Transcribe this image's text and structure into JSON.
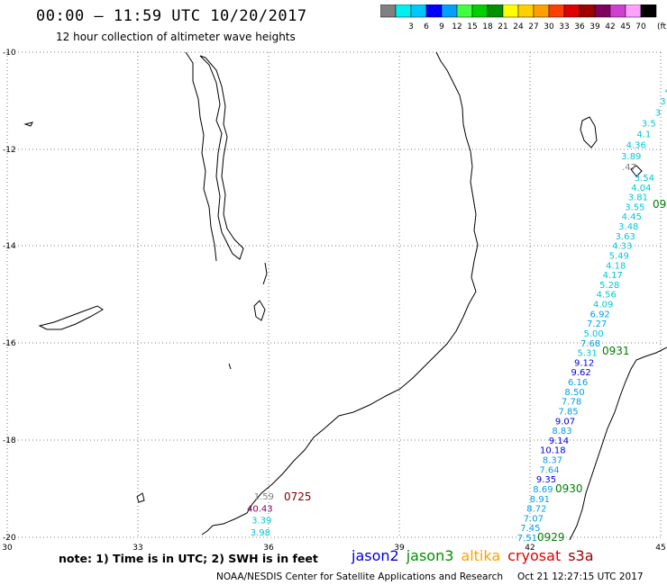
{
  "title": "00:00 – 11:59 UTC 10/20/2017",
  "subtitle": "12 hour collection of altimeter wave heights",
  "color_scale": {
    "unit": "(ft)",
    "bins": [
      {
        "label": "",
        "color": "#808080"
      },
      {
        "label": "3",
        "color": "#00f0f0"
      },
      {
        "label": "6",
        "color": "#00c8ff"
      },
      {
        "label": "9",
        "color": "#0000ff"
      },
      {
        "label": "12",
        "color": "#00a0ff"
      },
      {
        "label": "15",
        "color": "#40ff40"
      },
      {
        "label": "18",
        "color": "#00d000"
      },
      {
        "label": "21",
        "color": "#009000"
      },
      {
        "label": "24",
        "color": "#ffff00"
      },
      {
        "label": "27",
        "color": "#ffd000"
      },
      {
        "label": "30",
        "color": "#ffa000"
      },
      {
        "label": "33",
        "color": "#ff4000"
      },
      {
        "label": "36",
        "color": "#e00000"
      },
      {
        "label": "39",
        "color": "#a00000"
      },
      {
        "label": "42",
        "color": "#800060"
      },
      {
        "label": "45",
        "color": "#d040d0"
      },
      {
        "label": "70",
        "color": "#ffa0ff"
      },
      {
        "label": "",
        "color": "#000000"
      }
    ]
  },
  "axes": {
    "lon_ticks": [
      "30",
      "33",
      "36",
      "39",
      "42",
      "45"
    ],
    "lat_ticks": [
      "-10",
      "-12",
      "-14",
      "-16",
      "-18",
      "-20"
    ]
  },
  "passes": [
    {
      "label": "0725",
      "satellite": "cryosat",
      "color": "#800000"
    },
    {
      "label": "0931",
      "satellite": "jason3",
      "color": "#008000"
    },
    {
      "label": "0930",
      "satellite": "jason3",
      "color": "#008000"
    },
    {
      "label": "0929",
      "satellite": "jason3",
      "color": "#008000"
    },
    {
      "label": "09",
      "satellite": "jason3",
      "color": "#008000"
    }
  ],
  "wave_track_main": [
    {
      "v": "3.54",
      "c": "#00c8d8"
    },
    {
      "v": "4.04",
      "c": "#00c8d8"
    },
    {
      "v": "3.81",
      "c": "#00c8d8"
    },
    {
      "v": "3.55",
      "c": "#00c8d8"
    },
    {
      "v": "4.45",
      "c": "#00c8d8"
    },
    {
      "v": "3.48",
      "c": "#00c8d8"
    },
    {
      "v": "3.63",
      "c": "#00c8d8"
    },
    {
      "v": "4.33",
      "c": "#00c8d8"
    },
    {
      "v": "5.49",
      "c": "#00c8d8"
    },
    {
      "v": "4.18",
      "c": "#00c8d8"
    },
    {
      "v": "4.17",
      "c": "#00c8d8"
    },
    {
      "v": "5.28",
      "c": "#00c8d8"
    },
    {
      "v": "4.56",
      "c": "#00c8d8"
    },
    {
      "v": "4.09",
      "c": "#00c8d8"
    },
    {
      "v": "6.92",
      "c": "#00a0e8"
    },
    {
      "v": "7.27",
      "c": "#00a0e8"
    },
    {
      "v": "5.00",
      "c": "#00c8d8"
    },
    {
      "v": "7.68",
      "c": "#00a0e8"
    },
    {
      "v": "5.31",
      "c": "#00c8d8"
    },
    {
      "v": "9.12",
      "c": "#0000e0"
    },
    {
      "v": "9.62",
      "c": "#0000e0"
    },
    {
      "v": "6.16",
      "c": "#00a0e8"
    },
    {
      "v": "8.50",
      "c": "#00a0e8"
    },
    {
      "v": "7.78",
      "c": "#00a0e8"
    },
    {
      "v": "7.85",
      "c": "#00a0e8"
    },
    {
      "v": "9.07",
      "c": "#0000e0"
    },
    {
      "v": "8.83",
      "c": "#00a0e8"
    },
    {
      "v": "9.14",
      "c": "#0000e0"
    },
    {
      "v": "10.18",
      "c": "#0000e0"
    },
    {
      "v": "8.37",
      "c": "#00a0e8"
    },
    {
      "v": "7.64",
      "c": "#00a0e8"
    },
    {
      "v": "9.35",
      "c": "#0000e0"
    },
    {
      "v": "8.69",
      "c": "#00a0e8"
    },
    {
      "v": "8.91",
      "c": "#00a0e8"
    },
    {
      "v": "8.72",
      "c": "#00a0e8"
    },
    {
      "v": "7.07",
      "c": "#00a0e8"
    },
    {
      "v": "7.45",
      "c": "#00a0e8"
    },
    {
      "v": "7.51",
      "c": "#00a0e8"
    }
  ],
  "wave_track_top": [
    {
      "v": "4",
      "c": "#00c8d8"
    },
    {
      "v": "3",
      "c": "#00c8d8"
    },
    {
      "v": "3",
      "c": "#00c8d8"
    },
    {
      "v": "3.5",
      "c": "#00c8d8"
    },
    {
      "v": "4.1",
      "c": "#00c8d8"
    },
    {
      "v": "4.36",
      "c": "#00c8d8"
    },
    {
      "v": "3.89",
      "c": "#00c8d8"
    },
    {
      "v": ".47",
      "c": "#808080"
    }
  ],
  "wave_track_sw": [
    {
      "v": "1.59",
      "c": "#808080"
    },
    {
      "v": "40.43",
      "c": "#800060"
    },
    {
      "v": "3.39",
      "c": "#00c8d8"
    },
    {
      "v": "3.98",
      "c": "#00c8d8"
    }
  ],
  "note": "note: 1) Time is in UTC; 2) SWH is in feet",
  "satellites": [
    {
      "name": "jason2",
      "color": "#0000e0"
    },
    {
      "name": "jason3",
      "color": "#009000"
    },
    {
      "name": "altika",
      "color": "#ffa000"
    },
    {
      "name": "cryosat",
      "color": "#e00000"
    },
    {
      "name": "s3a",
      "color": "#a00000"
    }
  ],
  "credit": "NOAA/NESDIS Center for Satellite Applications and Research",
  "timestamp": "Oct 21 12:27:15 UTC 2017"
}
